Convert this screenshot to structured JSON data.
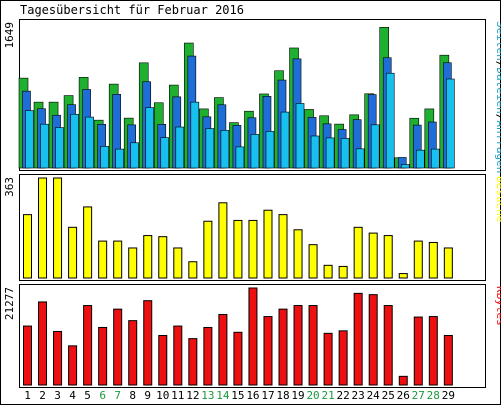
{
  "chart_data": {
    "type": "bar",
    "title": "Tagesübersicht für Februar 2016",
    "days": [
      "1",
      "2",
      "3",
      "4",
      "5",
      "6",
      "7",
      "8",
      "9",
      "10",
      "11",
      "12",
      "13",
      "14",
      "15",
      "16",
      "17",
      "18",
      "19",
      "20",
      "21",
      "22",
      "23",
      "24",
      "25",
      "26",
      "27",
      "28",
      "29"
    ],
    "weekend_days": [
      "6",
      "7",
      "13",
      "14",
      "20",
      "21",
      "27",
      "28"
    ],
    "panels": [
      {
        "id": "traffic",
        "axis_max_label": "1649",
        "ylim": [
          0,
          1649
        ],
        "legend": [
          "Seiten",
          "Dateien",
          "Anfragen"
        ],
        "legend_separator": "/",
        "series": [
          {
            "name": "Anfragen",
            "color": "#20b030",
            "values": [
              1022,
              749,
              749,
              824,
              1031,
              544,
              954,
              567,
              1196,
              742,
              943,
              1421,
              672,
              801,
              516,
              646,
              842,
              1106,
              1365,
              666,
              594,
              499,
              605,
              844,
              1600,
              116,
              566,
              672,
              1283
            ]
          },
          {
            "name": "Dateien",
            "color": "#1f6ed8",
            "values": [
              874,
              674,
              600,
              720,
              893,
              497,
              838,
              490,
              981,
              497,
              809,
              1273,
              582,
              719,
              485,
              571,
              815,
              1000,
              1241,
              576,
              502,
              438,
              550,
              835,
              1254,
              120,
              488,
              523,
              1197
            ]
          },
          {
            "name": "Seiten",
            "color": "#18c0f0",
            "values": [
              653,
              498,
              460,
              611,
              579,
              246,
              215,
              287,
              687,
              345,
              466,
              749,
              449,
              428,
              240,
              382,
              416,
              636,
              734,
              364,
              342,
              337,
              218,
              491,
              1078,
              40,
              203,
              215,
              1012
            ]
          }
        ]
      },
      {
        "id": "visits",
        "axis_max_label": "363",
        "ylim": [
          0,
          363
        ],
        "legend": [
          "Besuche"
        ],
        "series": [
          {
            "name": "Besuche",
            "color": "#ffff00",
            "values": [
              230,
              363,
              363,
              184,
              258,
              134,
              134,
              109,
              154,
              150,
              109,
              59,
              206,
              273,
              209,
              209,
              246,
              230,
              175,
              121,
              46,
              42,
              184,
              163,
              154,
              16,
              134,
              129,
              109
            ]
          }
        ]
      },
      {
        "id": "bytes",
        "axis_max_label": "21277",
        "ylim": [
          0,
          21277
        ],
        "legend": [
          "KBytes"
        ],
        "series": [
          {
            "name": "KBytes",
            "color": "#ee1010",
            "values": [
              12929,
              18218,
              11745,
              8587,
              17428,
              12621,
              16638,
              14117,
              18495,
              10862,
              12929,
              10174,
              12621,
              15471,
              11560,
              21277,
              15010,
              16638,
              17428,
              17428,
              11330,
              11883,
              20100,
              19818,
              17428,
              1900,
              14900,
              15010,
              10862
            ]
          }
        ]
      }
    ]
  },
  "colors": {
    "border": "#000000",
    "label_default": "#000000",
    "label_weekend": "#1a9a3a",
    "bar_outline": "#000000",
    "legend_traffic": "#20a0c0",
    "legend_separator": "#000000"
  }
}
